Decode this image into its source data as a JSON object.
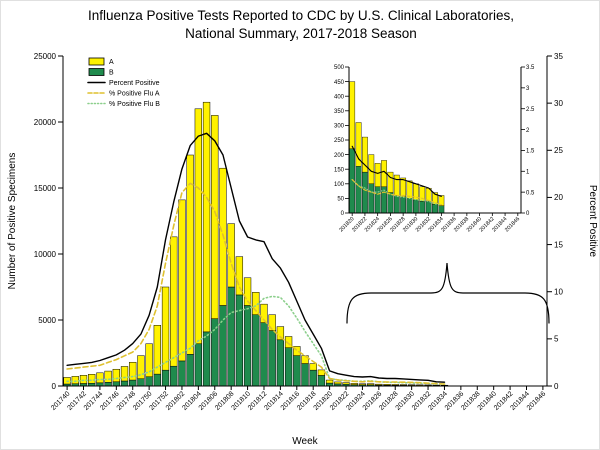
{
  "title": {
    "line1": "Influenza Positive Tests Reported to CDC by U.S. Clinical Laboratories,",
    "line2": "National Summary, 2017-2018 Season"
  },
  "axes": {
    "main": {
      "y_left_label": "Number of Positive Specimens",
      "y_right_label": "Percent Positive",
      "x_label": "Week",
      "y_left_tick_labels": [
        "0",
        "5000",
        "10000",
        "15000",
        "20000",
        "25000"
      ],
      "y_right_tick_labels": [
        "0",
        "5",
        "10",
        "15",
        "20",
        "25",
        "30",
        "35"
      ],
      "grid": false
    },
    "inset": {
      "y_left_tick_labels": [
        "0",
        "50",
        "100",
        "150",
        "200",
        "250",
        "300",
        "350",
        "400",
        "450",
        "500"
      ],
      "y_right_tick_labels": [
        "0",
        "0.5",
        "1",
        "1.5",
        "2",
        "2.5",
        "3",
        "3.5"
      ]
    }
  },
  "legend": [
    {
      "label": "A",
      "swatch": "box",
      "color": "#FFF200"
    },
    {
      "label": "B",
      "swatch": "box",
      "color": "#1F8B4D"
    },
    {
      "label": "Percent Positive",
      "swatch": "line",
      "style": "solid",
      "color": "#000000"
    },
    {
      "label": "% Positive Flu A",
      "swatch": "line",
      "style": "dashed",
      "color": "#DFC12F"
    },
    {
      "label": "% Positive Flu B",
      "swatch": "line",
      "style": "dotted",
      "color": "#8CCF8C"
    }
  ],
  "chart_data": {
    "type": "combo (stacked bar + line, dual y-axis, with zoom inset)",
    "legend_position": "top-left inside plot",
    "x": [
      "201740",
      "201741",
      "201742",
      "201743",
      "201744",
      "201745",
      "201746",
      "201747",
      "201748",
      "201749",
      "201750",
      "201751",
      "201752",
      "201801",
      "201802",
      "201803",
      "201804",
      "201805",
      "201806",
      "201807",
      "201808",
      "201809",
      "201810",
      "201811",
      "201812",
      "201813",
      "201814",
      "201815",
      "201816",
      "201817",
      "201818",
      "201819",
      "201820",
      "201821",
      "201822",
      "201823",
      "201824",
      "201825",
      "201826",
      "201827",
      "201828",
      "201829",
      "201830",
      "201831",
      "201832",
      "201833",
      "201834"
    ],
    "series": [
      {
        "name": "A",
        "type": "bar",
        "stack": "top",
        "axis": "left",
        "color": "#FFF200",
        "values": [
          500,
          560,
          620,
          680,
          760,
          850,
          950,
          1100,
          1350,
          1750,
          2500,
          3700,
          6300,
          9800,
          12200,
          15100,
          17800,
          17400,
          15400,
          10400,
          4800,
          2900,
          2100,
          1700,
          1400,
          1200,
          1000,
          850,
          700,
          600,
          500,
          420,
          230,
          150,
          120,
          100,
          80,
          90,
          70,
          70,
          65,
          60,
          55,
          50,
          45,
          40,
          35
        ]
      },
      {
        "name": "B",
        "type": "bar",
        "stack": "bottom",
        "axis": "left",
        "color": "#1F8B4D",
        "values": [
          150,
          170,
          190,
          210,
          240,
          280,
          320,
          380,
          450,
          550,
          700,
          900,
          1200,
          1500,
          1900,
          2400,
          3200,
          4100,
          5100,
          6100,
          7500,
          6900,
          6100,
          5400,
          4800,
          4200,
          3500,
          2900,
          2300,
          1700,
          1200,
          800,
          220,
          160,
          140,
          100,
          90,
          90,
          70,
          60,
          55,
          50,
          45,
          40,
          40,
          30,
          25
        ]
      },
      {
        "name": "Percent Positive",
        "type": "line",
        "axis": "right",
        "style": "solid",
        "color": "#000000",
        "values": [
          2.2,
          2.3,
          2.4,
          2.5,
          2.7,
          3.0,
          3.3,
          3.8,
          4.5,
          5.5,
          7.5,
          10.5,
          15.5,
          19.5,
          23.0,
          25.5,
          26.5,
          26.8,
          26.0,
          24.5,
          21.0,
          17.5,
          15.8,
          15.5,
          15.3,
          13.5,
          12.5,
          11.0,
          9.0,
          7.0,
          5.5,
          4.0,
          1.6,
          1.3,
          1.15,
          1.0,
          0.95,
          1.0,
          0.85,
          0.8,
          0.8,
          0.75,
          0.7,
          0.65,
          0.6,
          0.45,
          0.4
        ]
      },
      {
        "name": "% Positive Flu A",
        "type": "line",
        "axis": "right",
        "style": "dashed",
        "color": "#DFC12F",
        "values": [
          1.8,
          1.9,
          2.0,
          2.1,
          2.2,
          2.5,
          2.8,
          3.2,
          3.6,
          4.5,
          6.0,
          8.5,
          13.0,
          17.0,
          20.5,
          21.5,
          21.0,
          20.0,
          18.5,
          16.0,
          13.0,
          10.5,
          9.0,
          8.0,
          7.0,
          6.0,
          5.2,
          4.5,
          3.8,
          3.2,
          2.6,
          2.0,
          0.8,
          0.65,
          0.55,
          0.5,
          0.45,
          0.5,
          0.45,
          0.42,
          0.42,
          0.4,
          0.38,
          0.35,
          0.3,
          0.25,
          0.2
        ]
      },
      {
        "name": "% Positive Flu B",
        "type": "line",
        "axis": "right",
        "style": "dotted",
        "color": "#8CCF8C",
        "values": [
          0.5,
          0.5,
          0.6,
          0.6,
          0.7,
          0.7,
          0.8,
          0.9,
          1.0,
          1.2,
          1.5,
          2.0,
          2.5,
          3.0,
          3.5,
          4.0,
          4.8,
          5.3,
          6.0,
          7.0,
          7.8,
          8.0,
          8.2,
          8.5,
          9.3,
          9.5,
          9.4,
          8.5,
          7.2,
          5.8,
          4.5,
          3.2,
          0.8,
          0.65,
          0.6,
          0.5,
          0.5,
          0.55,
          0.45,
          0.4,
          0.38,
          0.35,
          0.32,
          0.3,
          0.28,
          0.22,
          0.2
        ]
      }
    ],
    "main_axis": {
      "y_left_max": 25000,
      "y_right_max": 35,
      "x_ticks": [
        "201740",
        "201742",
        "201744",
        "201746",
        "201748",
        "201750",
        "201752",
        "201802",
        "201804",
        "201806",
        "201808",
        "201810",
        "201812",
        "201814",
        "201816",
        "201818",
        "201820",
        "201822",
        "201824",
        "201826",
        "201828",
        "201830",
        "201832",
        "201834",
        "201836",
        "201838",
        "201840",
        "201842",
        "201844",
        "201846"
      ]
    },
    "inset_axis": {
      "start_week": "201820",
      "y_left_max": 500,
      "y_right_max": 3.5,
      "x_ticks": [
        "201820",
        "201822",
        "201824",
        "201826",
        "201828",
        "201830",
        "201832",
        "201834",
        "201836",
        "201838",
        "201840",
        "201842",
        "201844",
        "201846"
      ]
    }
  }
}
